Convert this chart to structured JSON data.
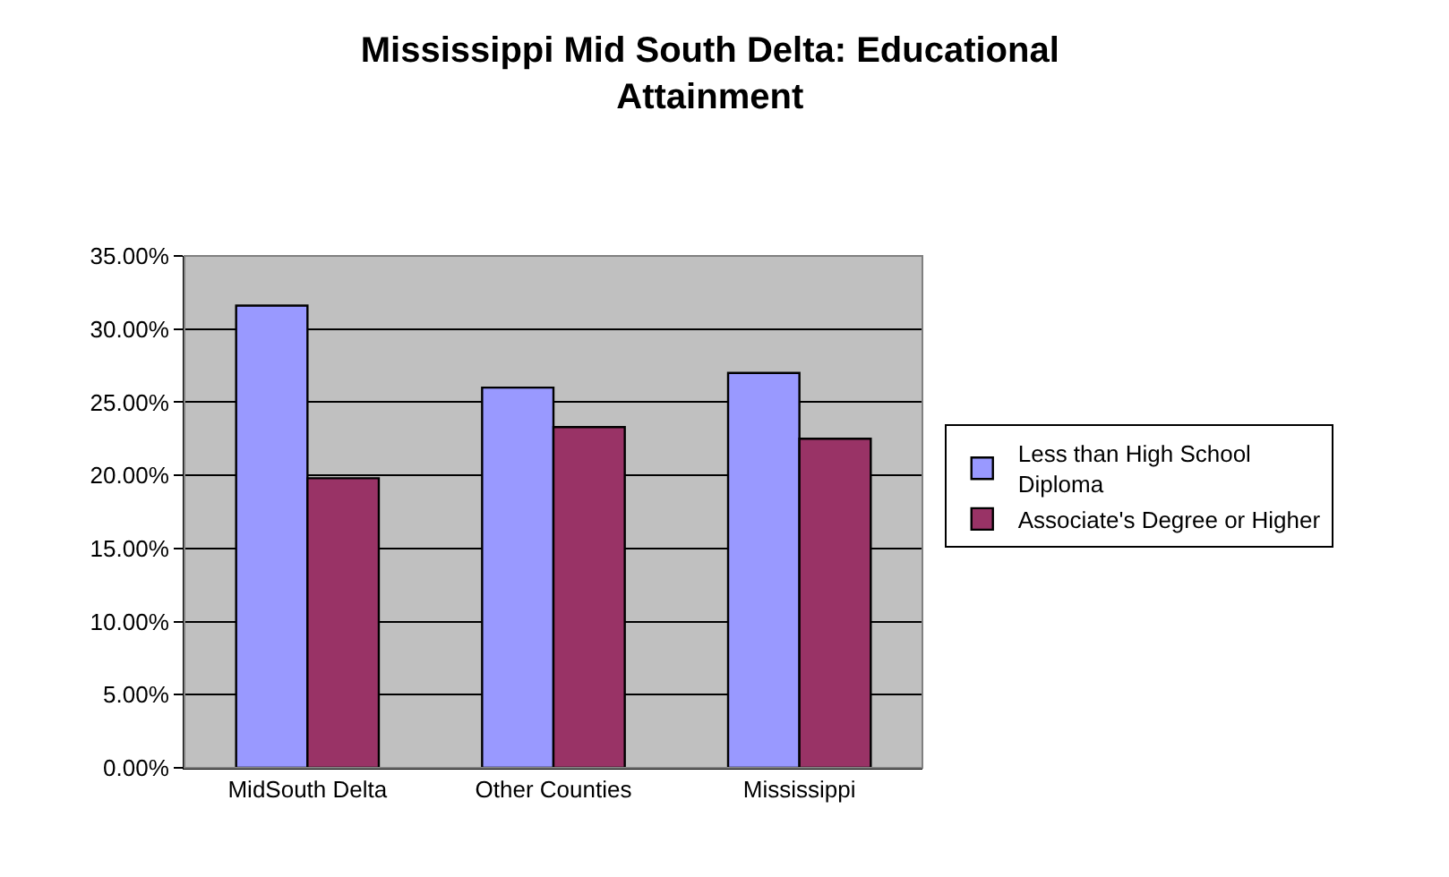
{
  "chart_data": {
    "type": "bar",
    "title": "Mississippi Mid South Delta: Educational\nAttainment",
    "categories": [
      "MidSouth Delta",
      "Other Counties",
      "Mississippi"
    ],
    "series": [
      {
        "name": "Less than High School\nDiploma",
        "color": "#9999ff",
        "values": [
          31.6,
          26.0,
          27.0
        ]
      },
      {
        "name": "Associate's Degree or Higher",
        "color": "#993366",
        "values": [
          19.8,
          23.3,
          22.5
        ]
      }
    ],
    "ylim": [
      0,
      35
    ],
    "yticks": [
      {
        "value": 0,
        "label": "0.00%"
      },
      {
        "value": 5,
        "label": "5.00%"
      },
      {
        "value": 10,
        "label": "10.00%"
      },
      {
        "value": 15,
        "label": "15.00%"
      },
      {
        "value": 20,
        "label": "20.00%"
      },
      {
        "value": 25,
        "label": "25.00%"
      },
      {
        "value": 30,
        "label": "30.00%"
      },
      {
        "value": 35,
        "label": "35.00%"
      }
    ],
    "grid": "y",
    "legend": "right"
  }
}
